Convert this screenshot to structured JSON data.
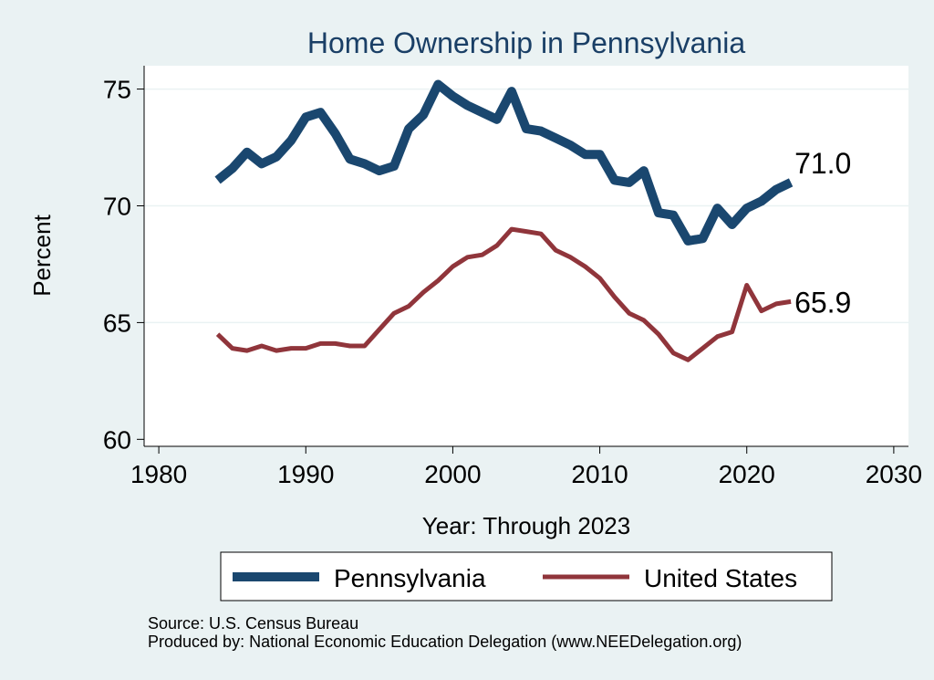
{
  "chart_data": {
    "type": "line",
    "title": "Home Ownership in Pennsylvania",
    "xlabel": "Year: Through 2023",
    "ylabel": "Percent",
    "xlim": [
      1979,
      2031
    ],
    "ylim": [
      59.7,
      76.0
    ],
    "xticks": [
      1980,
      1990,
      2000,
      2010,
      2020,
      2030
    ],
    "yticks": [
      60,
      65,
      70,
      75
    ],
    "grid": true,
    "legend_position": "bottom",
    "x": [
      1984,
      1985,
      1986,
      1987,
      1988,
      1989,
      1990,
      1991,
      1992,
      1993,
      1994,
      1995,
      1996,
      1997,
      1998,
      1999,
      2000,
      2001,
      2002,
      2003,
      2004,
      2005,
      2006,
      2007,
      2008,
      2009,
      2010,
      2011,
      2012,
      2013,
      2014,
      2015,
      2016,
      2017,
      2018,
      2019,
      2020,
      2021,
      2022,
      2023
    ],
    "series": [
      {
        "name": "Pennsylvania",
        "color": "#1a476f",
        "values": [
          71.1,
          71.6,
          72.3,
          71.8,
          72.1,
          72.8,
          73.8,
          74.0,
          73.1,
          72.0,
          71.8,
          71.5,
          71.7,
          73.3,
          73.9,
          75.2,
          74.7,
          74.3,
          74.0,
          73.7,
          74.9,
          73.3,
          73.2,
          72.9,
          72.6,
          72.2,
          72.2,
          71.1,
          71.0,
          71.5,
          69.7,
          69.6,
          68.5,
          68.6,
          69.9,
          69.2,
          69.9,
          70.2,
          70.7,
          71.0
        ],
        "end_label": "71.0"
      },
      {
        "name": "United States",
        "color": "#90353b",
        "values": [
          64.5,
          63.9,
          63.8,
          64.0,
          63.8,
          63.9,
          63.9,
          64.1,
          64.1,
          64.0,
          64.0,
          64.7,
          65.4,
          65.7,
          66.3,
          66.8,
          67.4,
          67.8,
          67.9,
          68.3,
          69.0,
          68.9,
          68.8,
          68.1,
          67.8,
          67.4,
          66.9,
          66.1,
          65.4,
          65.1,
          64.5,
          63.7,
          63.4,
          63.9,
          64.4,
          64.6,
          66.6,
          65.5,
          65.8,
          65.9
        ],
        "end_label": "65.9"
      }
    ]
  },
  "source_line": "Source: U.S. Census Bureau",
  "producer_line": "Produced by: National Economic Education Delegation (www.NEEDelegation.org)"
}
